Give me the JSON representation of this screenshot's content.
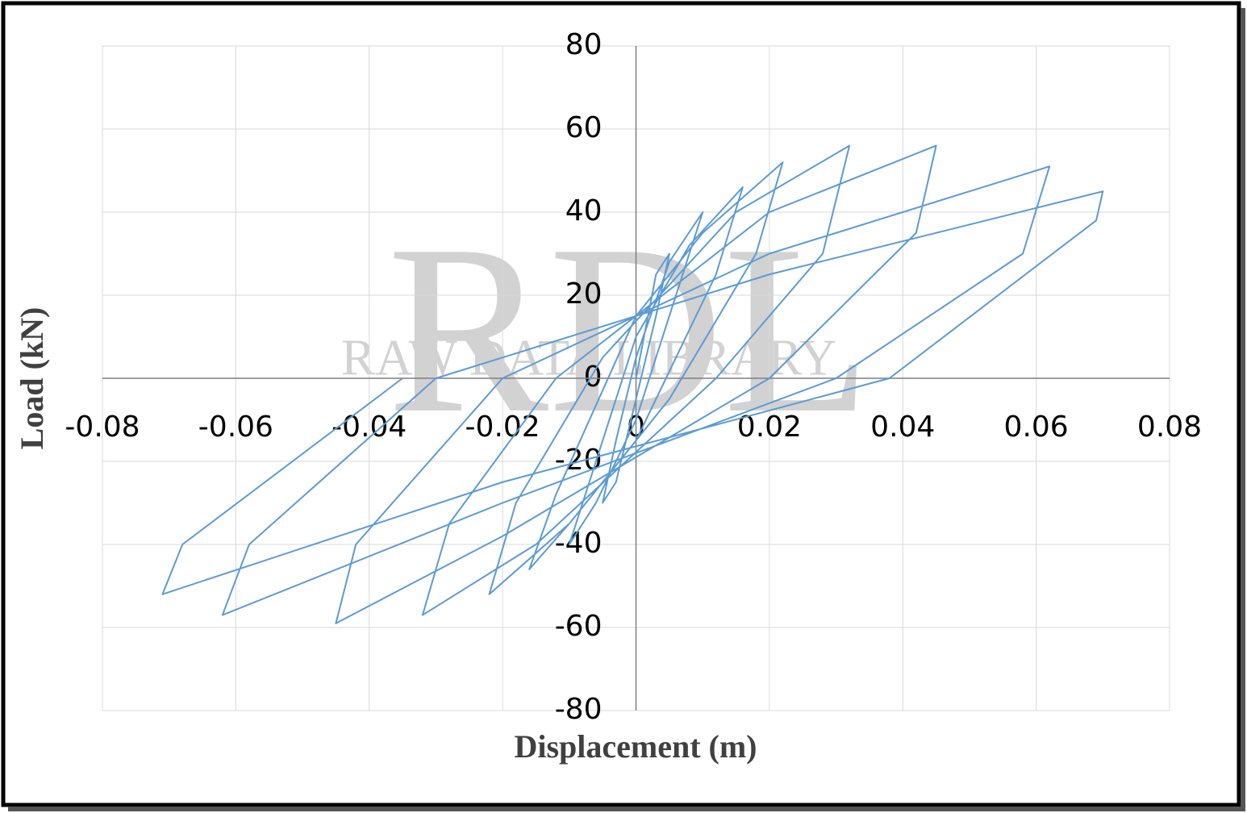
{
  "chart_data": {
    "type": "line",
    "watermark": {
      "logo": "RDL",
      "text": "RAW DATA LIBRARY"
    },
    "x_label": "Displacement (m)",
    "y_label": "Load (kN)",
    "xlim": [
      -0.08,
      0.08
    ],
    "xticks": [
      -0.08,
      -0.06,
      -0.04,
      -0.02,
      0,
      0.02,
      0.04,
      0.06,
      0.08
    ],
    "ylim": [
      -80,
      80
    ],
    "yticks": [
      -80,
      -60,
      -40,
      -20,
      0,
      20,
      40,
      60,
      80
    ],
    "grid": true,
    "series": [
      {
        "color": "#5b9bd5",
        "x": [
          0,
          0.003,
          0.005,
          0.003,
          0,
          -0.003,
          -0.005,
          -0.003,
          0,
          0.005,
          0.01,
          0.007,
          0,
          -0.006,
          -0.01,
          -0.007,
          0,
          0.008,
          0.016,
          0.012,
          0,
          -0.01,
          -0.016,
          -0.012,
          0,
          0.01,
          0.022,
          0.018,
          0.005,
          -0.01,
          -0.022,
          -0.018,
          -0.005,
          0.015,
          0.032,
          0.028,
          0.012,
          -0.015,
          -0.032,
          -0.028,
          -0.012,
          0.02,
          0.045,
          0.042,
          0.02,
          -0.02,
          -0.045,
          -0.042,
          -0.02,
          0.02,
          0.062,
          0.058,
          0.03,
          -0.02,
          -0.062,
          -0.058,
          -0.03,
          0.02,
          0.07,
          0.069,
          0.038,
          -0.02,
          -0.071,
          -0.068,
          -0.035
        ],
        "values": [
          0,
          25,
          30,
          15,
          -5,
          -25,
          -30,
          -15,
          5,
          28,
          40,
          25,
          -10,
          -30,
          -40,
          -25,
          10,
          32,
          46,
          25,
          -15,
          -35,
          -46,
          -28,
          15,
          35,
          52,
          30,
          -5,
          -35,
          -52,
          -30,
          5,
          40,
          56,
          30,
          0,
          -40,
          -57,
          -35,
          0,
          40,
          56,
          35,
          0,
          -38,
          -59,
          -40,
          0,
          30,
          51,
          30,
          0,
          -30,
          -57,
          -40,
          0,
          25,
          45,
          38,
          0,
          -25,
          -52,
          -40,
          0
        ]
      }
    ]
  }
}
